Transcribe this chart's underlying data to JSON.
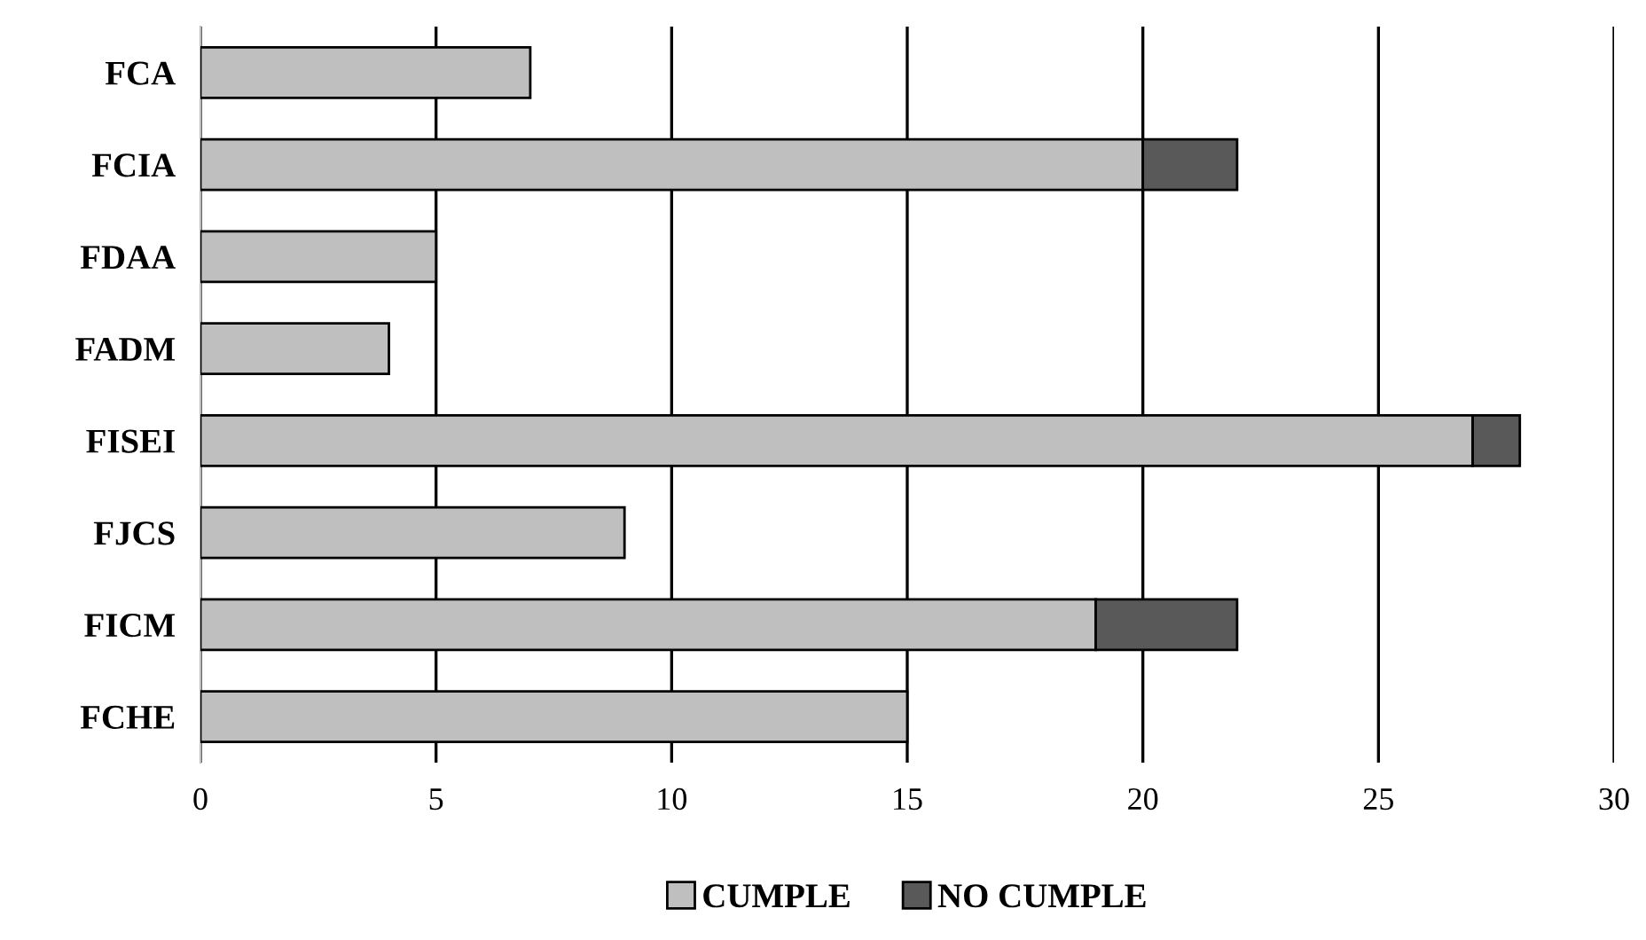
{
  "chart_data": {
    "type": "bar",
    "orientation": "horizontal",
    "stacked": true,
    "categories": [
      "FCA",
      "FCIA",
      "FDAA",
      "FADM",
      "FISEI",
      "FJCS",
      "FICM",
      "FCHE"
    ],
    "series": [
      {
        "name": "CUMPLE",
        "color": "#bfbfbf",
        "values": [
          7,
          20,
          5,
          4,
          27,
          9,
          19,
          15
        ]
      },
      {
        "name": "NO CUMPLE",
        "color": "#595959",
        "values": [
          null,
          2,
          null,
          null,
          1,
          null,
          3,
          null
        ]
      }
    ],
    "xlim": [
      0,
      30
    ],
    "xticks": [
      0,
      5,
      10,
      15,
      20,
      25,
      30
    ],
    "grid": "x",
    "legend": "bottom"
  }
}
